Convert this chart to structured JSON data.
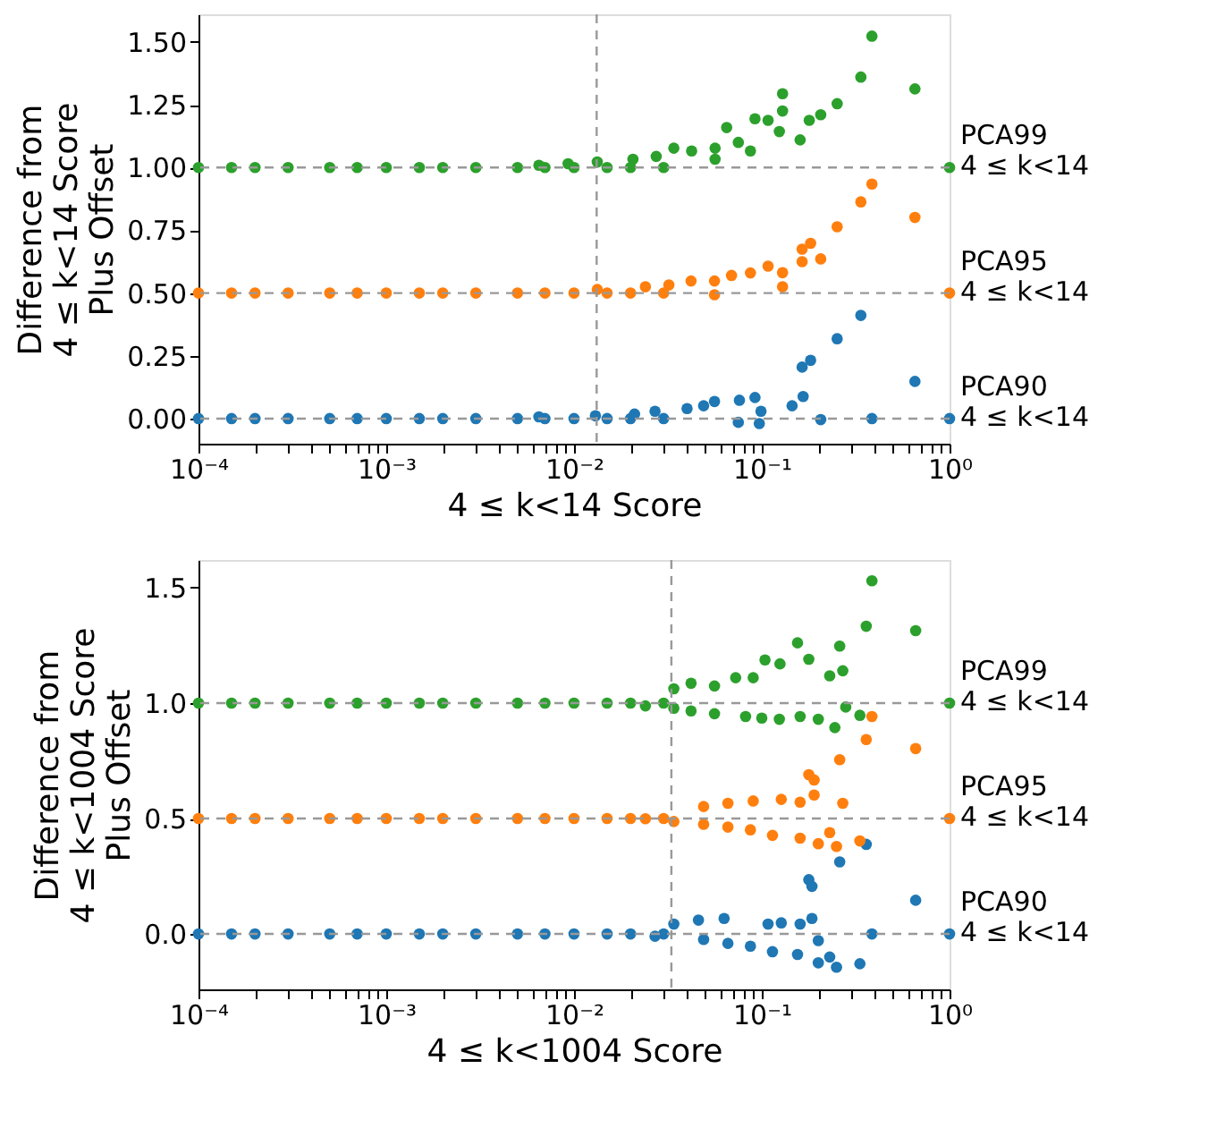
{
  "chart_data": [
    {
      "type": "scatter",
      "xlabel": "4 ≤ k<14  Score",
      "ylabel": "Difference from\n4 ≤ k<14 Score\nPlus Offset",
      "log": "x",
      "marker": "circle",
      "grid": false,
      "legend": false,
      "xlim": [
        0.0001,
        1
      ],
      "ylim": [
        -0.1,
        1.61
      ],
      "xticks": [
        {
          "value": 0.0001,
          "label": "10⁻⁴"
        },
        {
          "value": 0.0002,
          "label": null
        },
        {
          "value": 0.0003,
          "label": null
        },
        {
          "value": 0.0004,
          "label": null
        },
        {
          "value": 0.0005,
          "label": null
        },
        {
          "value": 0.0006,
          "label": null
        },
        {
          "value": 0.0007,
          "label": null
        },
        {
          "value": 0.0008,
          "label": null
        },
        {
          "value": 0.0009,
          "label": null
        },
        {
          "value": 0.001,
          "label": "10⁻³"
        },
        {
          "value": 0.002,
          "label": null
        },
        {
          "value": 0.003,
          "label": null
        },
        {
          "value": 0.004,
          "label": null
        },
        {
          "value": 0.005,
          "label": null
        },
        {
          "value": 0.006,
          "label": null
        },
        {
          "value": 0.007,
          "label": null
        },
        {
          "value": 0.008,
          "label": null
        },
        {
          "value": 0.009,
          "label": null
        },
        {
          "value": 0.01,
          "label": "10⁻²"
        },
        {
          "value": 0.02,
          "label": null
        },
        {
          "value": 0.03,
          "label": null
        },
        {
          "value": 0.04,
          "label": null
        },
        {
          "value": 0.05,
          "label": null
        },
        {
          "value": 0.06,
          "label": null
        },
        {
          "value": 0.07,
          "label": null
        },
        {
          "value": 0.08,
          "label": null
        },
        {
          "value": 0.09,
          "label": null
        },
        {
          "value": 0.1,
          "label": "10⁻¹"
        },
        {
          "value": 0.2,
          "label": null
        },
        {
          "value": 0.3,
          "label": null
        },
        {
          "value": 0.4,
          "label": null
        },
        {
          "value": 0.5,
          "label": null
        },
        {
          "value": 0.6,
          "label": null
        },
        {
          "value": 0.7,
          "label": null
        },
        {
          "value": 0.8,
          "label": null
        },
        {
          "value": 0.9,
          "label": null
        },
        {
          "value": 1,
          "label": "10⁰"
        }
      ],
      "yticks": [
        {
          "value": 0,
          "label": "0.00"
        },
        {
          "value": 0.25,
          "label": "0.25"
        },
        {
          "value": 0.5,
          "label": "0.50"
        },
        {
          "value": 0.75,
          "label": "0.75"
        },
        {
          "value": 1,
          "label": "1.00"
        },
        {
          "value": 1.25,
          "label": "1.25"
        },
        {
          "value": 1.5,
          "label": "1.50"
        }
      ],
      "ref_lines": [
        {
          "axis": "x",
          "value": 0.0132,
          "color": "#999999",
          "line_style": "dashed"
        },
        {
          "axis": "y",
          "value": 0,
          "color": "#999999",
          "line_style": "dashed"
        },
        {
          "axis": "y",
          "value": 0.5,
          "color": "#999999",
          "line_style": "dashed"
        },
        {
          "axis": "y",
          "value": 1,
          "color": "#999999",
          "line_style": "dashed"
        }
      ],
      "series": [
        {
          "name": "PCA90\n4 ≤ k<14",
          "color": "#1f77b4",
          "x": [
            0.0001,
            0.00015,
            0.0002,
            0.0003,
            0.0005,
            0.0007,
            0.001,
            0.0015,
            0.002,
            0.003,
            0.005,
            0.007,
            0.01,
            0.015,
            0.02,
            0.03,
            0.337,
            0.252,
            0.182,
            0.164,
            0.654,
            0.166,
            0.206,
            0.386,
            0.092,
            0.076,
            0.099,
            0.097,
            0.145,
            0.056,
            0.049,
            0.04,
            0.027,
            0.075,
            0.021,
            0.013,
            0.0065,
            1
          ],
          "values": [
            0,
            0,
            0,
            0,
            0,
            0,
            0,
            0,
            0,
            0,
            0,
            0,
            0,
            0,
            0,
            0,
            0.411,
            0.318,
            0.232,
            0.205,
            0.148,
            0.088,
            -0.004,
            0,
            0.084,
            0.073,
            0.029,
            -0.02,
            0.051,
            0.068,
            0.051,
            0.04,
            0.029,
            -0.015,
            0.018,
            0.011,
            0.007,
            0
          ]
        },
        {
          "name": "PCA95\n4 ≤ k<14",
          "color": "#ff7f0e",
          "x": [
            0.0001,
            0.00015,
            0.0002,
            0.0003,
            0.0005,
            0.0007,
            0.001,
            0.0015,
            0.002,
            0.003,
            0.005,
            0.007,
            0.01,
            0.015,
            0.02,
            0.03,
            0.386,
            0.337,
            0.252,
            0.654,
            0.182,
            0.164,
            0.206,
            0.164,
            0.108,
            0.129,
            0.129,
            0.087,
            0.069,
            0.056,
            0.042,
            0.032,
            0.024,
            0.0133,
            0.056,
            1
          ],
          "values": [
            0.5,
            0.5,
            0.5,
            0.5,
            0.5,
            0.5,
            0.5,
            0.5,
            0.5,
            0.5,
            0.5,
            0.5,
            0.5,
            0.5,
            0.5,
            0.5,
            0.934,
            0.863,
            0.764,
            0.801,
            0.698,
            0.675,
            0.636,
            0.625,
            0.607,
            0.581,
            0.525,
            0.58,
            0.57,
            0.548,
            0.548,
            0.532,
            0.525,
            0.514,
            0.493,
            0.5
          ]
        },
        {
          "name": "PCA99\n4 ≤ k<14",
          "color": "#2ca02c",
          "x": [
            0.0001,
            0.00015,
            0.0002,
            0.0003,
            0.0005,
            0.0007,
            0.001,
            0.0015,
            0.002,
            0.003,
            0.005,
            0.007,
            0.01,
            0.015,
            0.02,
            0.03,
            0.386,
            0.337,
            0.654,
            0.252,
            0.129,
            0.129,
            0.092,
            0.108,
            0.206,
            0.179,
            0.16,
            0.124,
            0.065,
            0.075,
            0.087,
            0.0564,
            0.0423,
            0.034,
            0.0274,
            0.0206,
            0.0133,
            0.0093,
            0.0065,
            0.0564,
            1
          ],
          "values": [
            1,
            1,
            1,
            1,
            1,
            1,
            1,
            1,
            1,
            1,
            1,
            1,
            1,
            1,
            1,
            1,
            1.523,
            1.36,
            1.313,
            1.254,
            1.294,
            1.225,
            1.194,
            1.188,
            1.21,
            1.188,
            1.11,
            1.143,
            1.159,
            1.1,
            1.066,
            1.077,
            1.066,
            1.077,
            1.044,
            1.033,
            1.022,
            1.015,
            1.009,
            1.033,
            1
          ]
        }
      ]
    },
    {
      "type": "scatter",
      "xlabel": "4 ≤ k<1004  Score",
      "ylabel": "Difference from\n4 ≤ k<1004 Score\nPlus Offset",
      "log": "x",
      "marker": "circle",
      "grid": false,
      "legend": false,
      "xlim": [
        0.0001,
        1
      ],
      "ylim": [
        -0.24,
        1.62
      ],
      "xticks": [
        {
          "value": 0.0001,
          "label": "10⁻⁴"
        },
        {
          "value": 0.0002,
          "label": null
        },
        {
          "value": 0.0003,
          "label": null
        },
        {
          "value": 0.0004,
          "label": null
        },
        {
          "value": 0.0005,
          "label": null
        },
        {
          "value": 0.0006,
          "label": null
        },
        {
          "value": 0.0007,
          "label": null
        },
        {
          "value": 0.0008,
          "label": null
        },
        {
          "value": 0.0009,
          "label": null
        },
        {
          "value": 0.001,
          "label": "10⁻³"
        },
        {
          "value": 0.002,
          "label": null
        },
        {
          "value": 0.003,
          "label": null
        },
        {
          "value": 0.004,
          "label": null
        },
        {
          "value": 0.005,
          "label": null
        },
        {
          "value": 0.006,
          "label": null
        },
        {
          "value": 0.007,
          "label": null
        },
        {
          "value": 0.008,
          "label": null
        },
        {
          "value": 0.009,
          "label": null
        },
        {
          "value": 0.01,
          "label": "10⁻²"
        },
        {
          "value": 0.02,
          "label": null
        },
        {
          "value": 0.03,
          "label": null
        },
        {
          "value": 0.04,
          "label": null
        },
        {
          "value": 0.05,
          "label": null
        },
        {
          "value": 0.06,
          "label": null
        },
        {
          "value": 0.07,
          "label": null
        },
        {
          "value": 0.08,
          "label": null
        },
        {
          "value": 0.09,
          "label": null
        },
        {
          "value": 0.1,
          "label": "10⁻¹"
        },
        {
          "value": 0.2,
          "label": null
        },
        {
          "value": 0.3,
          "label": null
        },
        {
          "value": 0.4,
          "label": null
        },
        {
          "value": 0.5,
          "label": null
        },
        {
          "value": 0.6,
          "label": null
        },
        {
          "value": 0.7,
          "label": null
        },
        {
          "value": 0.8,
          "label": null
        },
        {
          "value": 0.9,
          "label": null
        },
        {
          "value": 1,
          "label": "10⁰"
        }
      ],
      "yticks": [
        {
          "value": 0,
          "label": "0.0"
        },
        {
          "value": 0.5,
          "label": "0.5"
        },
        {
          "value": 1,
          "label": "1.0"
        },
        {
          "value": 1.5,
          "label": "1.5"
        }
      ],
      "ref_lines": [
        {
          "axis": "x",
          "value": 0.033,
          "color": "#999999",
          "line_style": "dashed"
        },
        {
          "axis": "y",
          "value": 0,
          "color": "#999999",
          "line_style": "dashed"
        },
        {
          "axis": "y",
          "value": 0.5,
          "color": "#999999",
          "line_style": "dashed"
        },
        {
          "axis": "y",
          "value": 1,
          "color": "#999999",
          "line_style": "dashed"
        }
      ],
      "series": [
        {
          "name": "PCA90\n4 ≤ k<14",
          "color": "#1f77b4",
          "x": [
            0.0001,
            0.00015,
            0.0002,
            0.0003,
            0.0005,
            0.0007,
            0.001,
            0.0015,
            0.002,
            0.003,
            0.005,
            0.007,
            0.01,
            0.015,
            0.02,
            0.03,
            0.36,
            0.26,
            0.178,
            0.185,
            0.66,
            0.386,
            0.185,
            0.127,
            0.16,
            0.108,
            0.063,
            0.046,
            0.034,
            0.2,
            0.23,
            0.25,
            0.333,
            0.2,
            0.155,
            0.114,
            0.087,
            0.066,
            0.049,
            0.027,
            1
          ],
          "values": [
            0,
            0,
            0,
            0,
            0,
            0,
            0,
            0,
            0,
            0,
            0,
            0,
            0,
            0,
            0,
            0,
            0.388,
            0.312,
            0.235,
            0.206,
            0.146,
            0,
            0.067,
            0.048,
            0.043,
            0.043,
            0.067,
            0.06,
            0.043,
            -0.029,
            -0.1,
            -0.144,
            -0.129,
            -0.125,
            -0.089,
            -0.077,
            -0.053,
            -0.041,
            -0.024,
            -0.01,
            0
          ]
        },
        {
          "name": "PCA95\n4 ≤ k<14",
          "color": "#ff7f0e",
          "x": [
            0.0001,
            0.00015,
            0.0002,
            0.0003,
            0.0005,
            0.0007,
            0.001,
            0.0015,
            0.002,
            0.003,
            0.005,
            0.007,
            0.01,
            0.015,
            0.02,
            0.03,
            0.386,
            0.36,
            0.66,
            0.26,
            0.178,
            0.19,
            0.19,
            0.16,
            0.27,
            0.127,
            0.09,
            0.066,
            0.049,
            0.333,
            0.25,
            0.23,
            0.2,
            0.16,
            0.114,
            0.087,
            0.066,
            0.049,
            0.034,
            0.024,
            1
          ],
          "values": [
            0.5,
            0.5,
            0.5,
            0.5,
            0.5,
            0.5,
            0.5,
            0.5,
            0.5,
            0.5,
            0.5,
            0.5,
            0.5,
            0.5,
            0.5,
            0.5,
            0.942,
            0.842,
            0.803,
            0.755,
            0.69,
            0.667,
            0.602,
            0.571,
            0.566,
            0.583,
            0.576,
            0.566,
            0.552,
            0.403,
            0.379,
            0.439,
            0.391,
            0.415,
            0.427,
            0.451,
            0.463,
            0.475,
            0.487,
            0.499,
            0.5
          ]
        },
        {
          "name": "PCA99\n4 ≤ k<14",
          "color": "#2ca02c",
          "x": [
            0.0001,
            0.00015,
            0.0002,
            0.0003,
            0.0005,
            0.0007,
            0.001,
            0.0015,
            0.002,
            0.003,
            0.005,
            0.007,
            0.01,
            0.015,
            0.02,
            0.03,
            0.386,
            0.36,
            0.66,
            0.155,
            0.26,
            0.178,
            0.104,
            0.125,
            0.27,
            0.23,
            0.0726,
            0.09,
            0.056,
            0.042,
            0.034,
            0.333,
            0.28,
            0.245,
            0.2,
            0.16,
            0.124,
            0.1,
            0.082,
            0.056,
            0.042,
            0.034,
            0.024,
            1
          ],
          "values": [
            1,
            1,
            1,
            1,
            1,
            1,
            1,
            1,
            1,
            1,
            1,
            1,
            1,
            1,
            1,
            1,
            1.53,
            1.333,
            1.314,
            1.261,
            1.247,
            1.19,
            1.187,
            1.17,
            1.14,
            1.118,
            1.11,
            1.11,
            1.074,
            1.086,
            1.062,
            0.947,
            0.983,
            0.894,
            0.93,
            0.942,
            0.93,
            0.935,
            0.942,
            0.954,
            0.966,
            0.978,
            0.988,
            1
          ]
        }
      ]
    }
  ]
}
